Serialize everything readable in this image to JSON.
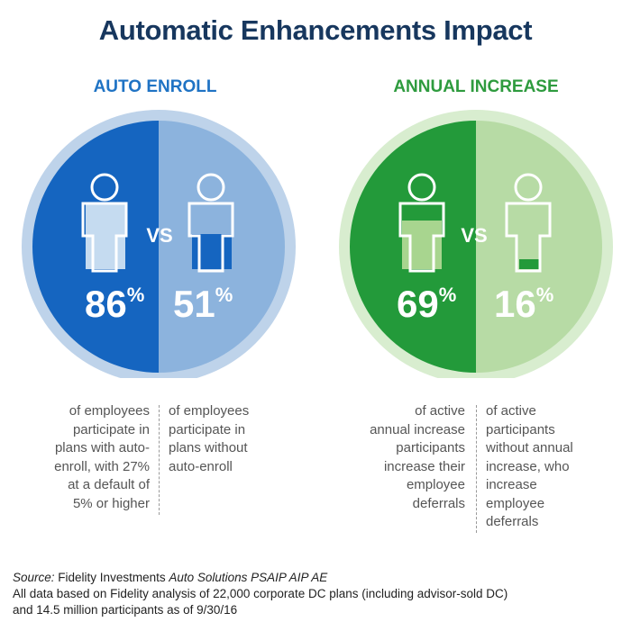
{
  "title": "Automatic Enhancements Impact",
  "colors": {
    "title": "#17375e",
    "blue_dark": "#1565c0",
    "blue_light": "#8cb3dd",
    "blue_ring": "#bed3ea",
    "green_dark": "#239a3a",
    "green_light": "#b7dba5",
    "green_ring": "#d8edcf"
  },
  "panels": [
    {
      "id": "auto-enroll",
      "title": "AUTO ENROLL",
      "vs": "VS",
      "left": {
        "value": "86",
        "unit": "%",
        "icon_fill_fraction": 0.86,
        "description": [
          "of employees",
          "participate in",
          "plans with auto-",
          "enroll, with 27%",
          "at a default of",
          "5% or higher"
        ]
      },
      "right": {
        "value": "51",
        "unit": "%",
        "icon_fill_fraction": 0.51,
        "description": [
          "of employees",
          "participate in",
          "plans without",
          "auto-enroll"
        ]
      }
    },
    {
      "id": "annual-increase",
      "title": "ANNUAL INCREASE",
      "vs": "VS",
      "left": {
        "value": "69",
        "unit": "%",
        "icon_fill_fraction": 0.69,
        "description": [
          "of active",
          "annual increase",
          "participants",
          "increase their",
          "employee",
          "deferrals"
        ]
      },
      "right": {
        "value": "16",
        "unit": "%",
        "icon_fill_fraction": 0.16,
        "description": [
          "of active",
          "participants",
          "without annual",
          "increase, who",
          "increase",
          "employee",
          "deferrals"
        ]
      }
    }
  ],
  "footer": {
    "source_label": "Source:",
    "source_company": "Fidelity Investments",
    "source_title": "Auto Solutions PSAIP AIP AE",
    "note_line1": "All data based on Fidelity analysis of 22,000 corporate DC plans (including advisor-sold DC)",
    "note_line2": "and 14.5 million participants as of 9/30/16"
  }
}
